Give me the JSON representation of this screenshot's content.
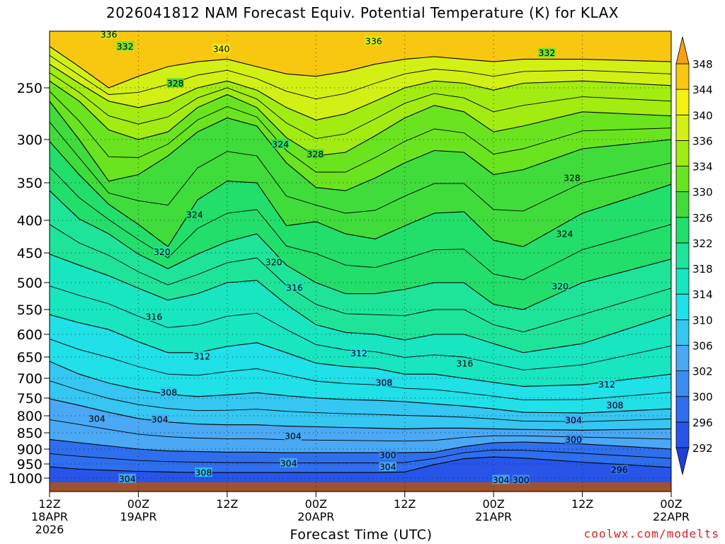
{
  "title": "2026041812 NAM Forecast Equiv. Potential Temperature (K) for KLAX",
  "credit": "coolwx.com/modelts",
  "chart_data": {
    "type": "heatmap",
    "title": "2026041812 NAM Forecast Equiv. Potential Temperature (K) for KLAX",
    "xlabel": "Forecast Time (UTC)",
    "ylabel": "",
    "x_ticks": [
      {
        "hour": 0,
        "label": [
          "12Z",
          "18APR",
          "2026"
        ]
      },
      {
        "hour": 12,
        "label": [
          "00Z",
          "19APR"
        ]
      },
      {
        "hour": 24,
        "label": [
          "12Z"
        ]
      },
      {
        "hour": 36,
        "label": [
          "00Z",
          "20APR"
        ]
      },
      {
        "hour": 48,
        "label": [
          "12Z"
        ]
      },
      {
        "hour": 60,
        "label": [
          "00Z",
          "21APR"
        ]
      },
      {
        "hour": 72,
        "label": [
          "12Z"
        ]
      },
      {
        "hour": 84,
        "label": [
          "00Z",
          "22APR"
        ]
      }
    ],
    "xlim_hours": [
      0,
      84
    ],
    "y_axis": "pressure (hPa)",
    "y_ticks": [
      250,
      300,
      350,
      400,
      450,
      500,
      550,
      600,
      650,
      700,
      750,
      800,
      850,
      900,
      950,
      1000
    ],
    "ylim": [
      1015,
      205
    ],
    "y_scale": "log-pressure",
    "grid": "dotted",
    "colorbar": {
      "levels": [
        292,
        296,
        300,
        302,
        306,
        310,
        314,
        318,
        322,
        326,
        330,
        334,
        336,
        340,
        344,
        348
      ],
      "colors": [
        "#2855e8",
        "#2f6fee",
        "#3c8cf2",
        "#4aa8f4",
        "#35c6f2",
        "#20e0e8",
        "#18e6c0",
        "#1ee49a",
        "#22de6a",
        "#40dc3c",
        "#6ae41e",
        "#a2ec12",
        "#d2f014",
        "#f4f010",
        "#f8c810"
      ],
      "extend": "both",
      "placement": "right"
    },
    "contour_labels": [
      {
        "value": 336,
        "hour": 8.0,
        "hpa": 207
      },
      {
        "value": 332,
        "hour": 10.2,
        "hpa": 216
      },
      {
        "value": 340,
        "hour": 23.2,
        "hpa": 218
      },
      {
        "value": 336,
        "hour": 43.8,
        "hpa": 212
      },
      {
        "value": 332,
        "hour": 67.2,
        "hpa": 221
      },
      {
        "value": 328,
        "hour": 17.0,
        "hpa": 246
      },
      {
        "value": 324,
        "hour": 31.2,
        "hpa": 305
      },
      {
        "value": 328,
        "hour": 35.9,
        "hpa": 316
      },
      {
        "value": 328,
        "hour": 70.6,
        "hpa": 344
      },
      {
        "value": 324,
        "hour": 19.6,
        "hpa": 392
      },
      {
        "value": 324,
        "hour": 69.6,
        "hpa": 420
      },
      {
        "value": 320,
        "hour": 15.2,
        "hpa": 448
      },
      {
        "value": 320,
        "hour": 30.3,
        "hpa": 465
      },
      {
        "value": 316,
        "hour": 33.1,
        "hpa": 509
      },
      {
        "value": 320,
        "hour": 69.0,
        "hpa": 506
      },
      {
        "value": 316,
        "hour": 14.1,
        "hpa": 564
      },
      {
        "value": 312,
        "hour": 20.6,
        "hpa": 648
      },
      {
        "value": 312,
        "hour": 41.8,
        "hpa": 641
      },
      {
        "value": 316,
        "hour": 56.1,
        "hpa": 665
      },
      {
        "value": 312,
        "hour": 75.3,
        "hpa": 715
      },
      {
        "value": 308,
        "hour": 16.1,
        "hpa": 735
      },
      {
        "value": 308,
        "hour": 45.2,
        "hpa": 710
      },
      {
        "value": 308,
        "hour": 76.4,
        "hpa": 770
      },
      {
        "value": 304,
        "hour": 6.4,
        "hpa": 808
      },
      {
        "value": 304,
        "hour": 14.9,
        "hpa": 810
      },
      {
        "value": 304,
        "hour": 32.9,
        "hpa": 860
      },
      {
        "value": 304,
        "hour": 70.8,
        "hpa": 812
      },
      {
        "value": 300,
        "hour": 70.8,
        "hpa": 870
      },
      {
        "value": 300,
        "hour": 45.7,
        "hpa": 920
      },
      {
        "value": 304,
        "hour": 32.3,
        "hpa": 947
      },
      {
        "value": 304,
        "hour": 45.7,
        "hpa": 960
      },
      {
        "value": 296,
        "hour": 77.0,
        "hpa": 970
      },
      {
        "value": 304,
        "hour": 10.5,
        "hpa": 1002
      },
      {
        "value": 308,
        "hour": 20.8,
        "hpa": 980
      },
      {
        "value": 304,
        "hour": 61.0,
        "hpa": 1006
      },
      {
        "value": 300,
        "hour": 63.7,
        "hpa": 1006
      }
    ],
    "bands": [
      {
        "theta": 340,
        "hpa": [
          216,
          232,
          250,
          240,
          232,
          228,
          226,
          232,
          238,
          240,
          236,
          230,
          226,
          224,
          226,
          228,
          226,
          226,
          228
        ]
      },
      {
        "theta": 336,
        "hpa": [
          230,
          246,
          262,
          268,
          262,
          250,
          244,
          252,
          268,
          280,
          274,
          262,
          250,
          244,
          246,
          252,
          246,
          244,
          248
        ]
      },
      {
        "theta": 332,
        "hpa": [
          244,
          262,
          290,
          300,
          292,
          268,
          256,
          268,
          298,
          318,
          314,
          296,
          278,
          266,
          272,
          292,
          286,
          272,
          276
        ]
      },
      {
        "theta": 328,
        "hpa": [
          262,
          300,
          348,
          340,
          318,
          292,
          278,
          286,
          326,
          356,
          360,
          344,
          326,
          312,
          314,
          340,
          334,
          310,
          300
        ]
      },
      {
        "theta": 324,
        "hpa": [
          302,
          340,
          378,
          406,
          440,
          372,
          348,
          350,
          408,
          402,
          420,
          428,
          408,
          390,
          388,
          430,
          440,
          390,
          352
        ]
      },
      {
        "theta": 320,
        "hpa": [
          360,
          398,
          420,
          452,
          476,
          452,
          432,
          420,
          470,
          500,
          520,
          520,
          512,
          500,
          500,
          540,
          550,
          500,
          460
        ]
      },
      {
        "theta": 316,
        "hpa": [
          452,
          470,
          488,
          510,
          532,
          520,
          500,
          496,
          540,
          580,
          596,
          600,
          612,
          600,
          600,
          620,
          640,
          620,
          560
        ]
      },
      {
        "theta": 312,
        "hpa": [
          560,
          576,
          590,
          616,
          640,
          640,
          626,
          618,
          640,
          664,
          672,
          676,
          690,
          690,
          700,
          710,
          720,
          716,
          690
        ]
      },
      {
        "theta": 308,
        "hpa": [
          660,
          690,
          712,
          728,
          740,
          746,
          742,
          736,
          744,
          750,
          754,
          756,
          760,
          766,
          772,
          780,
          790,
          792,
          780
        ]
      },
      {
        "theta": 304,
        "hpa": [
          752,
          770,
          790,
          808,
          818,
          824,
          826,
          826,
          830,
          832,
          834,
          836,
          838,
          836,
          836,
          838,
          840,
          842,
          838
        ]
      },
      {
        "theta": 300,
        "hpa": [
          870,
          880,
          890,
          900,
          906,
          908,
          910,
          910,
          912,
          912,
          912,
          912,
          912,
          910,
          892,
          880,
          878,
          884,
          900
        ]
      },
      {
        "theta": 296,
        "hpa": [
          960,
          968,
          972,
          976,
          978,
          980,
          980,
          980,
          980,
          980,
          980,
          980,
          978,
          952,
          932,
          926,
          930,
          944,
          962
        ]
      }
    ],
    "band_hours": [
      0,
      4,
      8,
      12,
      16,
      20,
      24,
      28,
      32,
      36,
      40,
      44,
      48,
      52,
      56,
      60,
      64,
      72,
      84
    ],
    "ground": {
      "color": "#a0522d",
      "hpa_top": 1000
    }
  }
}
